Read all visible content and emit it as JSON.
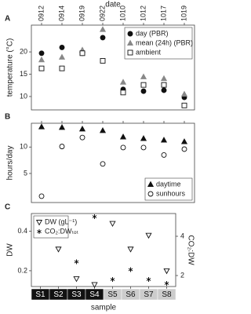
{
  "chart_data": [
    {
      "type": "dot",
      "panel_label": "A",
      "x_label": "date",
      "y_label": "temperature (°C)",
      "categories": [
        "0912",
        "0914",
        "0919",
        "0922",
        "1010",
        "1012",
        "1017",
        "1019"
      ],
      "ylim": [
        7,
        26
      ],
      "yticks": [
        10,
        15,
        20
      ],
      "legend": "upper right",
      "series": [
        {
          "name": "day (PBR)",
          "color": "#111111",
          "marker": "circle-filled",
          "values": [
            19.7,
            21,
            19.7,
            23.2,
            11.6,
            11.2,
            11.4,
            9.8
          ]
        },
        {
          "name": "mean (24h) (PBR)",
          "color": "#888888",
          "marker": "triangle",
          "values": [
            18.2,
            18.8,
            20.4,
            25,
            13.2,
            14.4,
            14,
            10.5
          ]
        },
        {
          "name": "ambient",
          "color": "#111111",
          "marker": "square-open",
          "values": [
            16.3,
            16.3,
            19.7,
            18,
            10.9,
            12.6,
            12.6,
            8
          ]
        }
      ]
    },
    {
      "type": "dot",
      "panel_label": "B",
      "y_label": "hours/day",
      "ylim": [
        -0.5,
        14.5
      ],
      "yticks": [
        5,
        10
      ],
      "legend": "lower right",
      "series": [
        {
          "name": "daytime",
          "color": "#111111",
          "marker": "triangle",
          "values": [
            13.8,
            13.7,
            13.4,
            13.1,
            11.9,
            11.6,
            11.3,
            11
          ]
        },
        {
          "name": "sunhours",
          "color": "#111111",
          "marker": "circle-open",
          "values": [
            0.7,
            10.1,
            11.8,
            6.8,
            9.9,
            9.9,
            8.5,
            9.6
          ]
        }
      ]
    },
    {
      "type": "dot",
      "panel_label": "C",
      "x_label": "sample",
      "y_label": "DW",
      "y2_label": "CO₂:DW",
      "categories": [
        "S1",
        "S2",
        "S3",
        "S4",
        "S5",
        "S6",
        "S7",
        "S8"
      ],
      "category_colors": [
        "#111111",
        "#111111",
        "#111111",
        "#111111",
        "#cccccc",
        "#cccccc",
        "#cccccc",
        "#cccccc"
      ],
      "ylim": [
        0.12,
        0.49
      ],
      "yticks": [
        0.2,
        0.4
      ],
      "y2lim": [
        1.44,
        5.16
      ],
      "y2ticks": [
        2,
        4
      ],
      "legend": "upper left",
      "series": [
        {
          "name": "DW (gL⁻¹)",
          "color": "#111111",
          "marker": "triangle-down-open",
          "values": [
            null,
            0.31,
            0.16,
            0.13,
            0.44,
            0.31,
            0.38,
            0.2
          ]
        },
        {
          "name": "CO₂:DWₜₒₜ",
          "color": "#111111",
          "marker": "asterisk",
          "axis": "y2",
          "values": [
            null,
            null,
            2.7,
            5.0,
            1.8,
            2.3,
            1.8,
            1.6
          ]
        }
      ]
    }
  ]
}
